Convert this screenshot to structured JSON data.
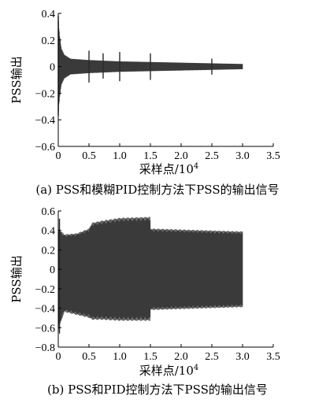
{
  "chart_data": [
    {
      "type": "line",
      "caption": "(a) PSS和模糊PID控制方法下PSS的输出信号",
      "xlabel": "采样点/10",
      "xlabel_exp": "4",
      "ylabel": "PSS输出",
      "xlim": [
        0,
        3.5
      ],
      "ylim": [
        -0.6,
        0.4
      ],
      "xticks": [
        "0",
        "0.5",
        "1.0",
        "1.5",
        "2.0",
        "2.5",
        "3.0",
        "3.5"
      ],
      "yticks": [
        "0.4",
        "0.2",
        "0",
        "−0.2",
        "−0.4",
        "−0.6"
      ],
      "grid": false,
      "signal": {
        "x_start": 0,
        "x_end": 3.0,
        "envelope_upper": [
          [
            0.0,
            0.38
          ],
          [
            0.02,
            0.25
          ],
          [
            0.05,
            0.14
          ],
          [
            0.1,
            0.09
          ],
          [
            0.2,
            0.06
          ],
          [
            0.5,
            0.05
          ],
          [
            1.0,
            0.04
          ],
          [
            1.5,
            0.035
          ],
          [
            2.0,
            0.03
          ],
          [
            2.5,
            0.025
          ],
          [
            3.0,
            0.02
          ]
        ],
        "envelope_lower": [
          [
            0.0,
            -0.37
          ],
          [
            0.02,
            -0.25
          ],
          [
            0.05,
            -0.14
          ],
          [
            0.1,
            -0.09
          ],
          [
            0.2,
            -0.06
          ],
          [
            0.5,
            -0.05
          ],
          [
            1.0,
            -0.04
          ],
          [
            1.5,
            -0.035
          ],
          [
            2.0,
            -0.03
          ],
          [
            2.5,
            -0.025
          ],
          [
            3.0,
            -0.02
          ]
        ],
        "spikes": [
          {
            "x": 0.0,
            "hi": 0.38,
            "lo": -0.37
          },
          {
            "x": 0.5,
            "hi": 0.12,
            "lo": -0.12
          },
          {
            "x": 0.73,
            "hi": 0.1,
            "lo": -0.09
          },
          {
            "x": 1.0,
            "hi": 0.11,
            "lo": -0.11
          },
          {
            "x": 1.5,
            "hi": 0.1,
            "lo": -0.1
          },
          {
            "x": 2.5,
            "hi": 0.06,
            "lo": -0.06
          }
        ]
      }
    },
    {
      "type": "line",
      "caption": "(b) PSS和PID控制方法下PSS的输出信号",
      "xlabel": "采样点/10",
      "xlabel_exp": "4",
      "ylabel": "PSS输出",
      "xlim": [
        0,
        3.5
      ],
      "ylim": [
        -0.8,
        0.6
      ],
      "xticks": [
        "0",
        "0.5",
        "1.0",
        "1.5",
        "2.0",
        "2.5",
        "3.0",
        "3.5"
      ],
      "yticks": [
        "0.6",
        "0.4",
        "0.2",
        "0",
        "−0.2",
        "−0.4",
        "−0.6",
        "−0.8"
      ],
      "grid": false,
      "signal": {
        "x_start": 0,
        "x_end": 3.0,
        "envelope_upper": [
          [
            0.0,
            0.42
          ],
          [
            0.1,
            0.36
          ],
          [
            0.3,
            0.37
          ],
          [
            0.5,
            0.42
          ],
          [
            0.55,
            0.48
          ],
          [
            0.7,
            0.5
          ],
          [
            1.0,
            0.53
          ],
          [
            1.5,
            0.54
          ],
          [
            1.5,
            0.42
          ],
          [
            2.0,
            0.41
          ],
          [
            2.5,
            0.4
          ],
          [
            3.0,
            0.39
          ]
        ],
        "envelope_lower": [
          [
            0.0,
            -0.62
          ],
          [
            0.1,
            -0.44
          ],
          [
            0.3,
            -0.47
          ],
          [
            0.5,
            -0.5
          ],
          [
            0.55,
            -0.52
          ],
          [
            0.7,
            -0.52
          ],
          [
            1.0,
            -0.53
          ],
          [
            1.5,
            -0.53
          ],
          [
            1.5,
            -0.42
          ],
          [
            2.0,
            -0.41
          ],
          [
            2.5,
            -0.4
          ],
          [
            3.0,
            -0.39
          ]
        ],
        "spikes": [
          {
            "x": 0.02,
            "hi": 0.52,
            "lo": -0.66
          }
        ]
      }
    }
  ]
}
